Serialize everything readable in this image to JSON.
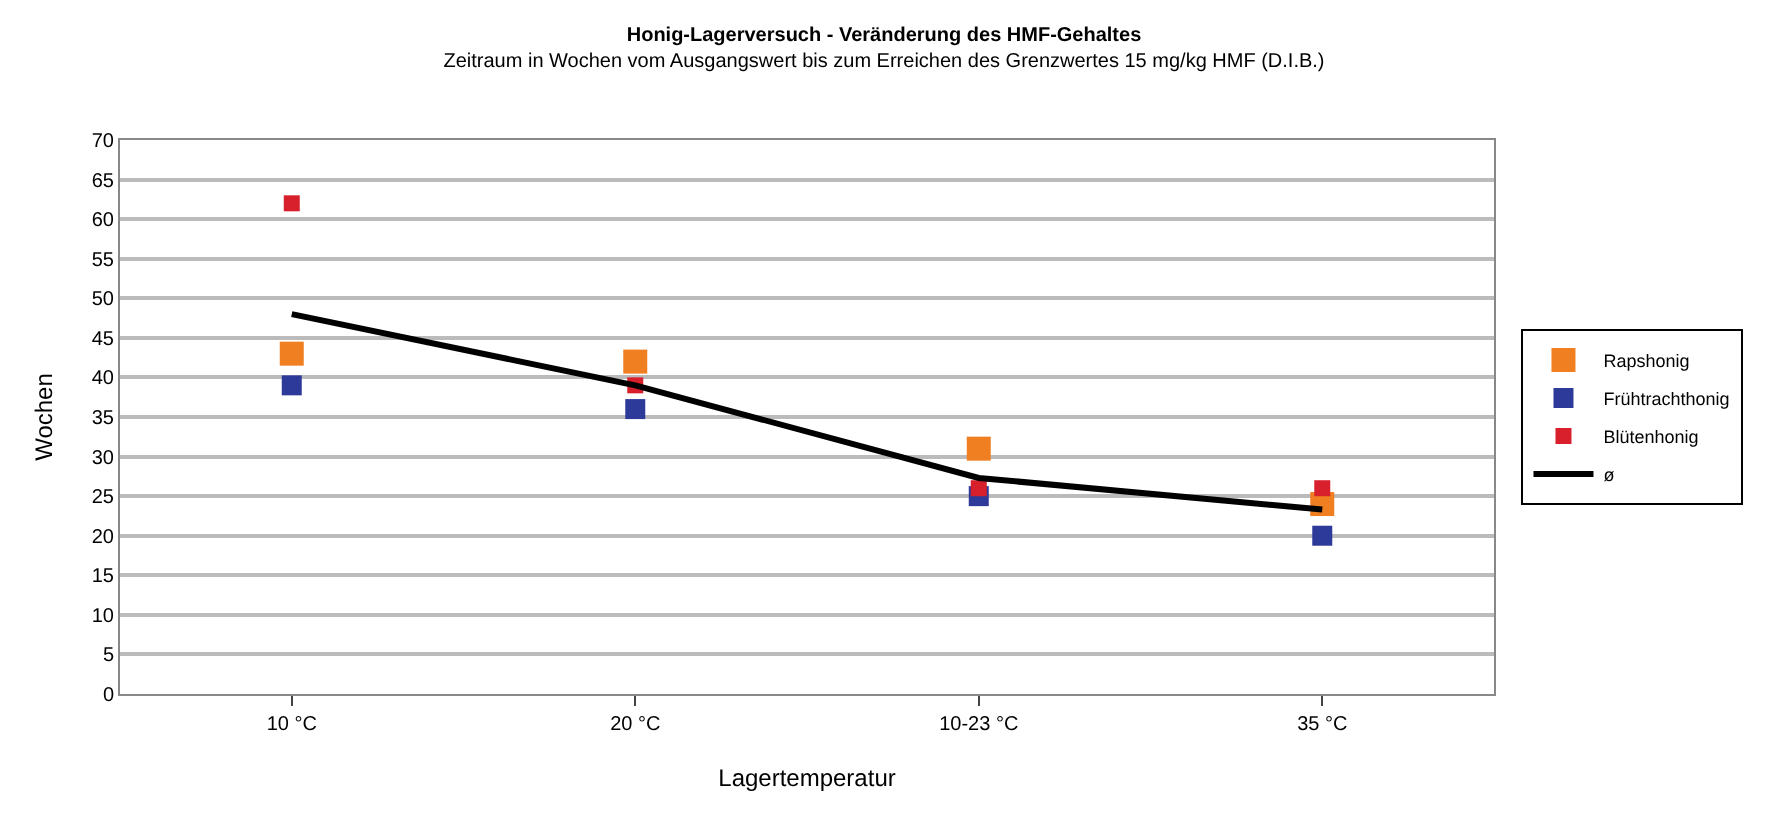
{
  "chart_data": {
    "type": "scatter",
    "title": "Honig-Lagerversuch - Veränderung des HMF-Gehaltes",
    "subtitle": "Zeitraum in Wochen vom Ausgangswert bis zum Erreichen des Grenzwertes 15 mg/kg HMF (D.I.B.)",
    "xlabel": "Lagertemperatur",
    "ylabel": "Wochen",
    "categories": [
      "10 °C",
      "20 °C",
      "10-23 °C",
      "35 °C"
    ],
    "series": [
      {
        "name": "Rapshonig",
        "color": "#f07f22",
        "values": [
          43,
          42,
          31,
          24
        ]
      },
      {
        "name": "Frühtrachthonig",
        "color": "#2e3a9a",
        "values": [
          39,
          36,
          25,
          20
        ]
      },
      {
        "name": "Blütenhonig",
        "color": "#d8202c",
        "values": [
          62,
          39,
          26,
          26
        ]
      },
      {
        "name": "ø",
        "type": "line",
        "color": "#000000",
        "values": [
          48,
          39,
          27.3,
          23.3
        ],
        "marker": "none"
      }
    ],
    "ylim": [
      0,
      70
    ],
    "yticks": [
      0,
      5,
      10,
      15,
      20,
      25,
      30,
      35,
      40,
      45,
      50,
      55,
      60,
      65,
      70
    ],
    "grid": "y",
    "legend": "right",
    "marker": "square"
  }
}
